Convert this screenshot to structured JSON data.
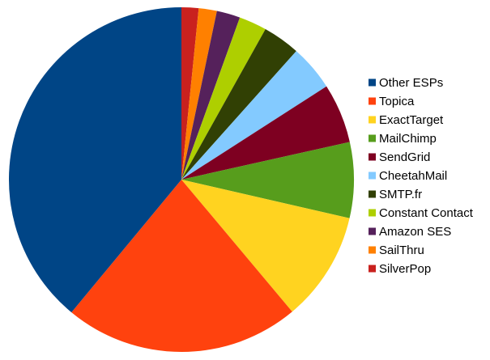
{
  "chart_data": {
    "type": "pie",
    "title": "",
    "legend_position": "right",
    "start_angle_deg": 0,
    "direction": "clockwise",
    "slices": [
      {
        "label": "SilverPop",
        "value": 1.6,
        "color": "#c9211e"
      },
      {
        "label": "SailThru",
        "value": 1.7,
        "color": "#ff8000"
      },
      {
        "label": "Amazon SES",
        "value": 2.2,
        "color": "#55215b"
      },
      {
        "label": "Constant Contact",
        "value": 2.6,
        "color": "#aecf00"
      },
      {
        "label": "SMTP.fr",
        "value": 3.5,
        "color": "#314004"
      },
      {
        "label": "CheetahMail",
        "value": 4.3,
        "color": "#83caff"
      },
      {
        "label": "SendGrid",
        "value": 5.6,
        "color": "#7e0021"
      },
      {
        "label": "MailChimp",
        "value": 7.1,
        "color": "#579d1c"
      },
      {
        "label": "ExactTarget",
        "value": 10.3,
        "color": "#ffd320"
      },
      {
        "label": "Topica",
        "value": 22.1,
        "color": "#ff420e"
      },
      {
        "label": "Other ESPs",
        "value": 39.0,
        "color": "#004586"
      }
    ],
    "legend_order": [
      "Other ESPs",
      "Topica",
      "ExactTarget",
      "MailChimp",
      "SendGrid",
      "CheetahMail",
      "SMTP.fr",
      "Constant Contact",
      "Amazon SES",
      "SailThru",
      "SilverPop"
    ]
  }
}
